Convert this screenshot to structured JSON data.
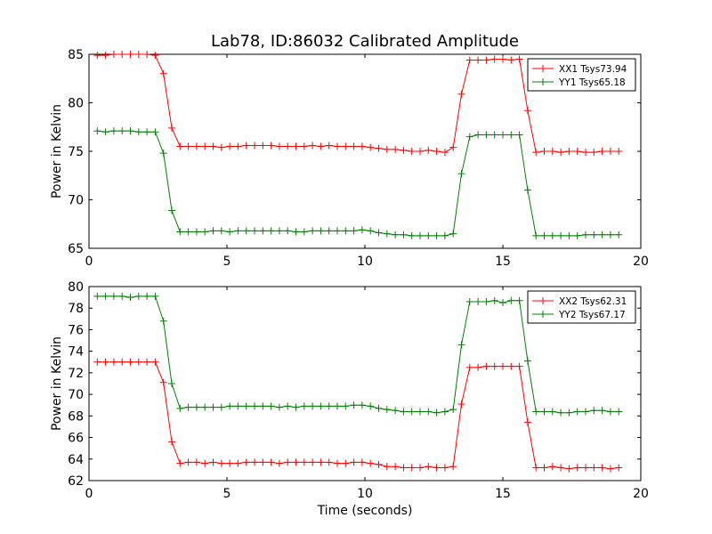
{
  "figure": {
    "title": "Lab78, ID:86032 Calibrated Amplitude",
    "xlabel": "Time (seconds)"
  },
  "chart_data": [
    {
      "type": "line",
      "title": "Lab78, ID:86032 Calibrated Amplitude",
      "xlabel": "",
      "ylabel": "Power in Kelvin",
      "xlim": [
        0,
        20
      ],
      "ylim": [
        65,
        85
      ],
      "xticks": [
        "0",
        "5",
        "10",
        "15",
        "20"
      ],
      "yticks": [
        "65",
        "70",
        "75",
        "80",
        "85"
      ],
      "legend_position": "top-right",
      "grid": false,
      "x": [
        0.3,
        0.6,
        0.9,
        1.2,
        1.5,
        1.8,
        2.1,
        2.4,
        2.7,
        3.0,
        3.3,
        3.6,
        3.9,
        4.2,
        4.5,
        4.8,
        5.1,
        5.4,
        5.7,
        6.0,
        6.3,
        6.6,
        6.9,
        7.2,
        7.5,
        7.8,
        8.1,
        8.4,
        8.7,
        9.0,
        9.3,
        9.6,
        9.9,
        10.2,
        10.5,
        10.8,
        11.1,
        11.4,
        11.7,
        12.0,
        12.3,
        12.6,
        12.9,
        13.2,
        13.5,
        13.8,
        14.1,
        14.4,
        14.7,
        15.0,
        15.3,
        15.6,
        15.9,
        16.2,
        16.5,
        16.8,
        17.1,
        17.4,
        17.7,
        18.0,
        18.3,
        18.6,
        18.9,
        19.2
      ],
      "series": [
        {
          "name": "XX1 Tsys73.94",
          "color": "#ff0000",
          "values": [
            84.9,
            84.9,
            85.0,
            85.0,
            85.0,
            85.0,
            85.0,
            84.9,
            83.0,
            77.4,
            75.5,
            75.5,
            75.5,
            75.5,
            75.5,
            75.4,
            75.5,
            75.5,
            75.6,
            75.6,
            75.6,
            75.6,
            75.5,
            75.5,
            75.5,
            75.5,
            75.6,
            75.5,
            75.6,
            75.5,
            75.5,
            75.5,
            75.5,
            75.4,
            75.3,
            75.2,
            75.2,
            75.1,
            75.0,
            75.0,
            75.1,
            75.0,
            74.9,
            75.4,
            80.9,
            84.4,
            84.4,
            84.4,
            84.5,
            84.5,
            84.4,
            84.5,
            79.2,
            74.9,
            75.0,
            75.0,
            74.9,
            75.0,
            75.0,
            74.9,
            74.9,
            75.0,
            75.0,
            75.0
          ]
        },
        {
          "name": "YY1 Tsys65.18",
          "color": "#008000",
          "values": [
            77.1,
            77.0,
            77.1,
            77.1,
            77.1,
            77.0,
            77.0,
            77.0,
            74.8,
            68.9,
            66.7,
            66.7,
            66.7,
            66.7,
            66.8,
            66.8,
            66.7,
            66.8,
            66.8,
            66.8,
            66.8,
            66.8,
            66.8,
            66.8,
            66.7,
            66.7,
            66.8,
            66.8,
            66.8,
            66.8,
            66.8,
            66.8,
            66.9,
            66.8,
            66.6,
            66.5,
            66.4,
            66.4,
            66.3,
            66.3,
            66.3,
            66.3,
            66.3,
            66.5,
            72.7,
            76.5,
            76.7,
            76.7,
            76.7,
            76.7,
            76.7,
            76.7,
            71.0,
            66.3,
            66.3,
            66.3,
            66.3,
            66.3,
            66.3,
            66.4,
            66.4,
            66.4,
            66.4,
            66.4
          ]
        }
      ]
    },
    {
      "type": "line",
      "title": "",
      "xlabel": "Time (seconds)",
      "ylabel": "Power in Kelvin",
      "xlim": [
        0,
        20
      ],
      "ylim": [
        62,
        80
      ],
      "xticks": [
        "0",
        "5",
        "10",
        "15",
        "20"
      ],
      "yticks": [
        "62",
        "64",
        "66",
        "68",
        "70",
        "72",
        "74",
        "76",
        "78",
        "80"
      ],
      "legend_position": "top-right",
      "grid": false,
      "x": [
        0.3,
        0.6,
        0.9,
        1.2,
        1.5,
        1.8,
        2.1,
        2.4,
        2.7,
        3.0,
        3.3,
        3.6,
        3.9,
        4.2,
        4.5,
        4.8,
        5.1,
        5.4,
        5.7,
        6.0,
        6.3,
        6.6,
        6.9,
        7.2,
        7.5,
        7.8,
        8.1,
        8.4,
        8.7,
        9.0,
        9.3,
        9.6,
        9.9,
        10.2,
        10.5,
        10.8,
        11.1,
        11.4,
        11.7,
        12.0,
        12.3,
        12.6,
        12.9,
        13.2,
        13.5,
        13.8,
        14.1,
        14.4,
        14.7,
        15.0,
        15.3,
        15.6,
        15.9,
        16.2,
        16.5,
        16.8,
        17.1,
        17.4,
        17.7,
        18.0,
        18.3,
        18.6,
        18.9,
        19.2
      ],
      "series": [
        {
          "name": "XX2 Tsys62.31",
          "color": "#ff0000",
          "values": [
            73.0,
            73.0,
            73.0,
            73.0,
            73.0,
            73.0,
            73.0,
            73.0,
            71.1,
            65.6,
            63.6,
            63.7,
            63.7,
            63.6,
            63.7,
            63.6,
            63.6,
            63.6,
            63.7,
            63.7,
            63.7,
            63.7,
            63.6,
            63.7,
            63.7,
            63.7,
            63.7,
            63.7,
            63.7,
            63.6,
            63.6,
            63.7,
            63.7,
            63.6,
            63.5,
            63.3,
            63.3,
            63.2,
            63.2,
            63.2,
            63.3,
            63.2,
            63.2,
            63.3,
            69.1,
            72.5,
            72.5,
            72.6,
            72.6,
            72.6,
            72.6,
            72.6,
            67.4,
            63.2,
            63.2,
            63.3,
            63.2,
            63.1,
            63.2,
            63.2,
            63.2,
            63.2,
            63.1,
            63.2
          ]
        },
        {
          "name": "YY2 Tsys67.17",
          "color": "#008000",
          "values": [
            79.1,
            79.1,
            79.1,
            79.1,
            79.0,
            79.1,
            79.1,
            79.1,
            76.8,
            71.0,
            68.7,
            68.8,
            68.8,
            68.8,
            68.8,
            68.8,
            68.9,
            68.9,
            68.9,
            68.9,
            68.9,
            68.9,
            68.8,
            68.9,
            68.8,
            68.9,
            68.9,
            68.9,
            68.9,
            68.9,
            68.9,
            69.0,
            69.0,
            68.9,
            68.7,
            68.6,
            68.5,
            68.4,
            68.4,
            68.4,
            68.4,
            68.3,
            68.4,
            68.6,
            74.6,
            78.6,
            78.6,
            78.6,
            78.7,
            78.5,
            78.7,
            78.7,
            73.1,
            68.4,
            68.4,
            68.4,
            68.3,
            68.3,
            68.4,
            68.4,
            68.5,
            68.5,
            68.4,
            68.4
          ]
        }
      ]
    }
  ]
}
